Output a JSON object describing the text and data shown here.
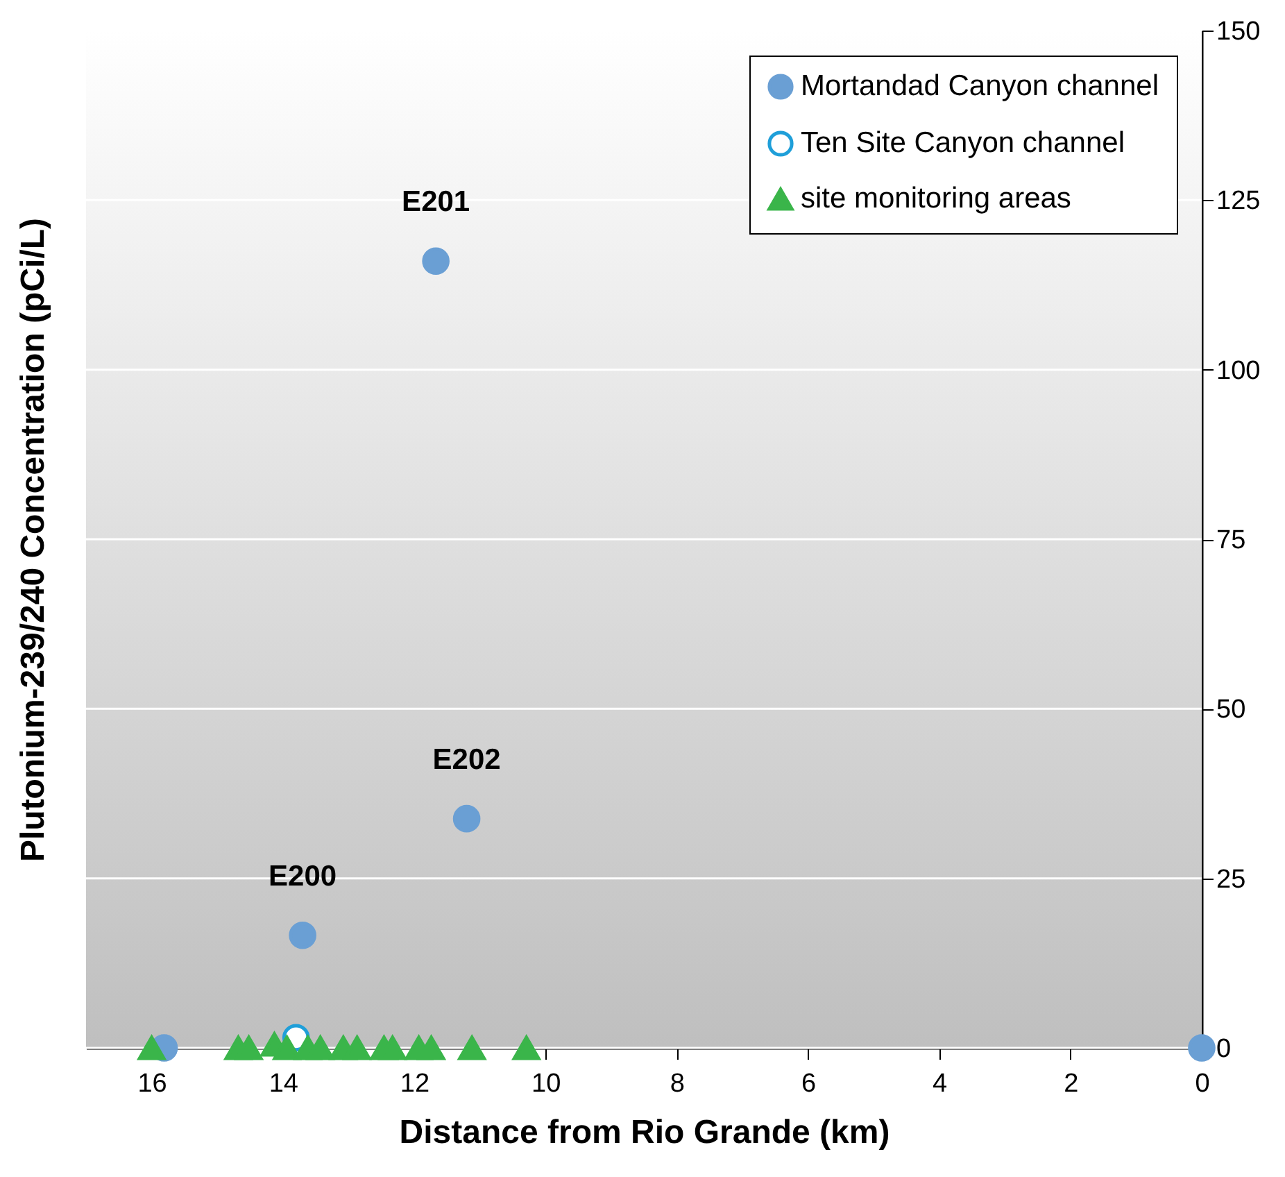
{
  "chart_data": {
    "type": "scatter",
    "xlabel": "Distance from Rio Grande (km)",
    "ylabel": "Plutonium-239/240 Concentration (pCi/L)",
    "xlim": [
      17,
      0
    ],
    "xticks": [
      16,
      14,
      12,
      10,
      8,
      6,
      4,
      2,
      0
    ],
    "ylim": [
      0,
      150
    ],
    "yticks": [
      0,
      25,
      50,
      75,
      100,
      125,
      150
    ],
    "grid": "y",
    "legend": "top right",
    "series": [
      {
        "name": "Mortandad Canyon channel",
        "color": "#6a9fd4",
        "marker": "circle",
        "x": [
          15.81,
          13.7,
          11.2,
          11.67,
          0
        ],
        "values": [
          0,
          16.6,
          33.8,
          116,
          0
        ]
      },
      {
        "name": "Ten Site Canyon channel",
        "color": "#1f9fd9",
        "marker": "circle",
        "x": [
          13.8
        ],
        "values": [
          1.5
        ]
      },
      {
        "name": "site monitoring areas",
        "color": "#3ab54a",
        "marker": "triangle",
        "x": [
          16.0,
          14.68,
          14.52,
          14.13,
          13.94,
          13.62,
          13.43,
          13.08,
          12.87,
          12.46,
          12.33,
          11.93,
          11.74,
          11.12,
          10.29
        ],
        "values": [
          0,
          0,
          0,
          0.5,
          0,
          0,
          0,
          0,
          0,
          0,
          0,
          0,
          0,
          0,
          0
        ]
      }
    ],
    "annotations": [
      {
        "text": "E201",
        "x": 11.67,
        "y": 116
      },
      {
        "text": "E202",
        "x": 11.2,
        "y": 33.8
      },
      {
        "text": "E200",
        "x": 13.7,
        "y": 16.6
      }
    ]
  }
}
